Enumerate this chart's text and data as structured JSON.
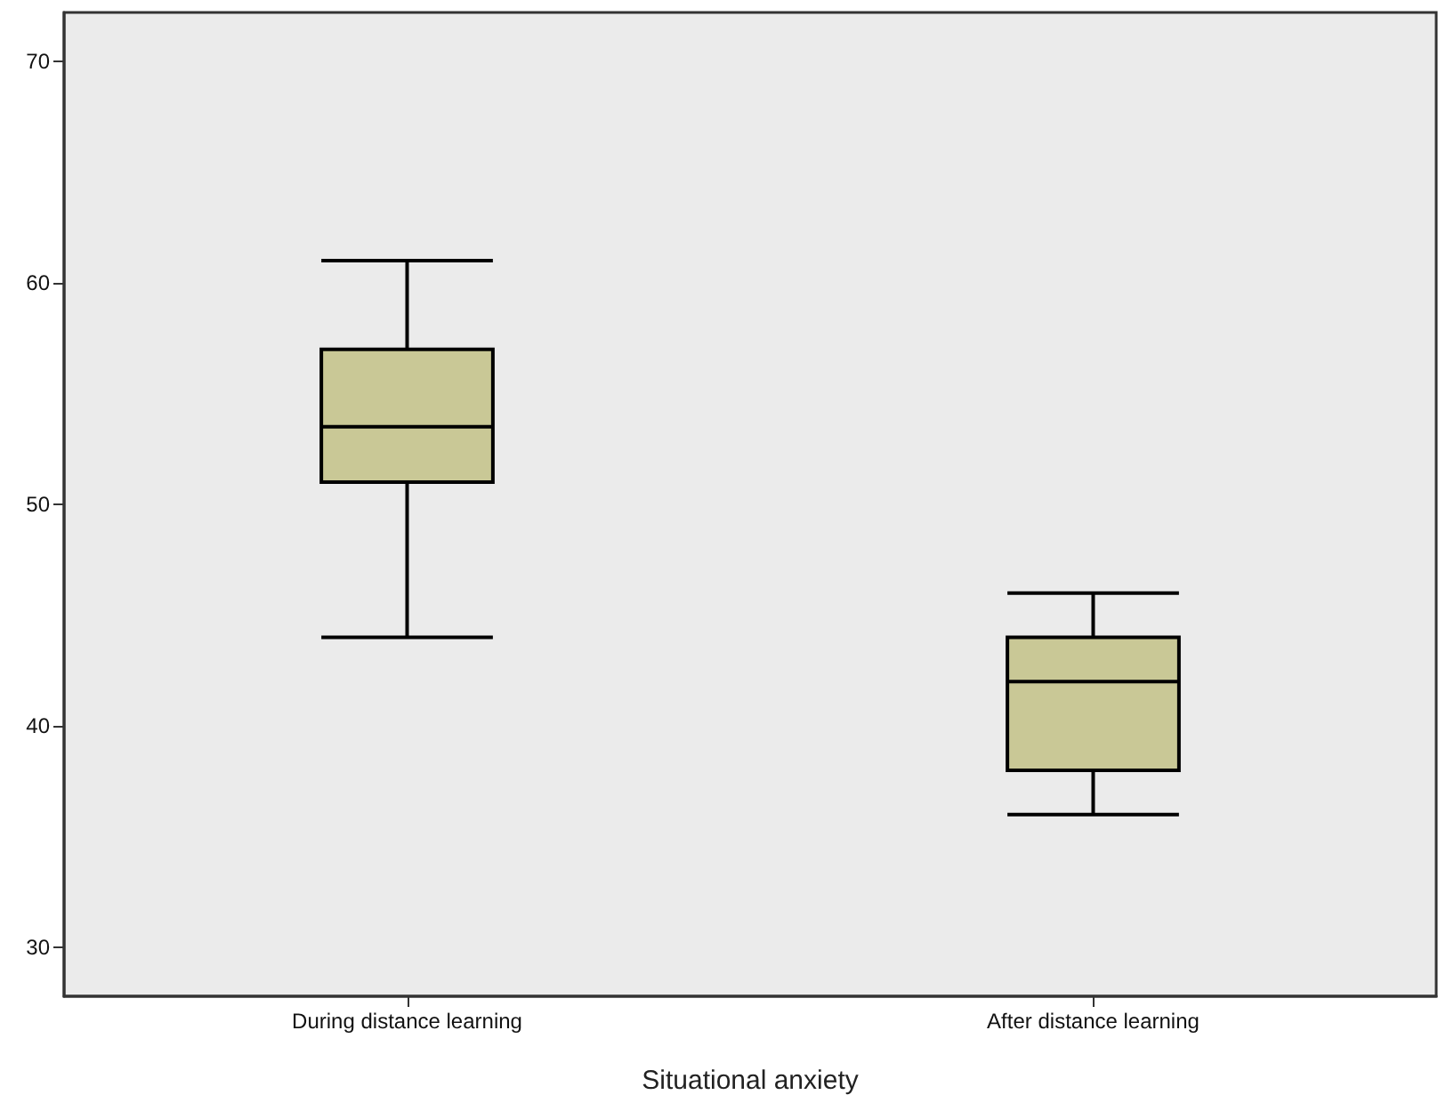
{
  "chart_data": {
    "type": "box",
    "xlabel": "Situational anxiety",
    "categories": [
      "During distance learning",
      "After distance learning"
    ],
    "boxes": [
      {
        "low": 44,
        "q1": 51,
        "median": 53.5,
        "q3": 57,
        "high": 61
      },
      {
        "low": 36,
        "q1": 38,
        "median": 42,
        "q3": 44,
        "high": 46
      }
    ],
    "color": "#c9c896",
    "ylim": [
      27.8,
      72.2
    ],
    "yticks": [
      30,
      40,
      50,
      60,
      70
    ],
    "grid": false
  }
}
